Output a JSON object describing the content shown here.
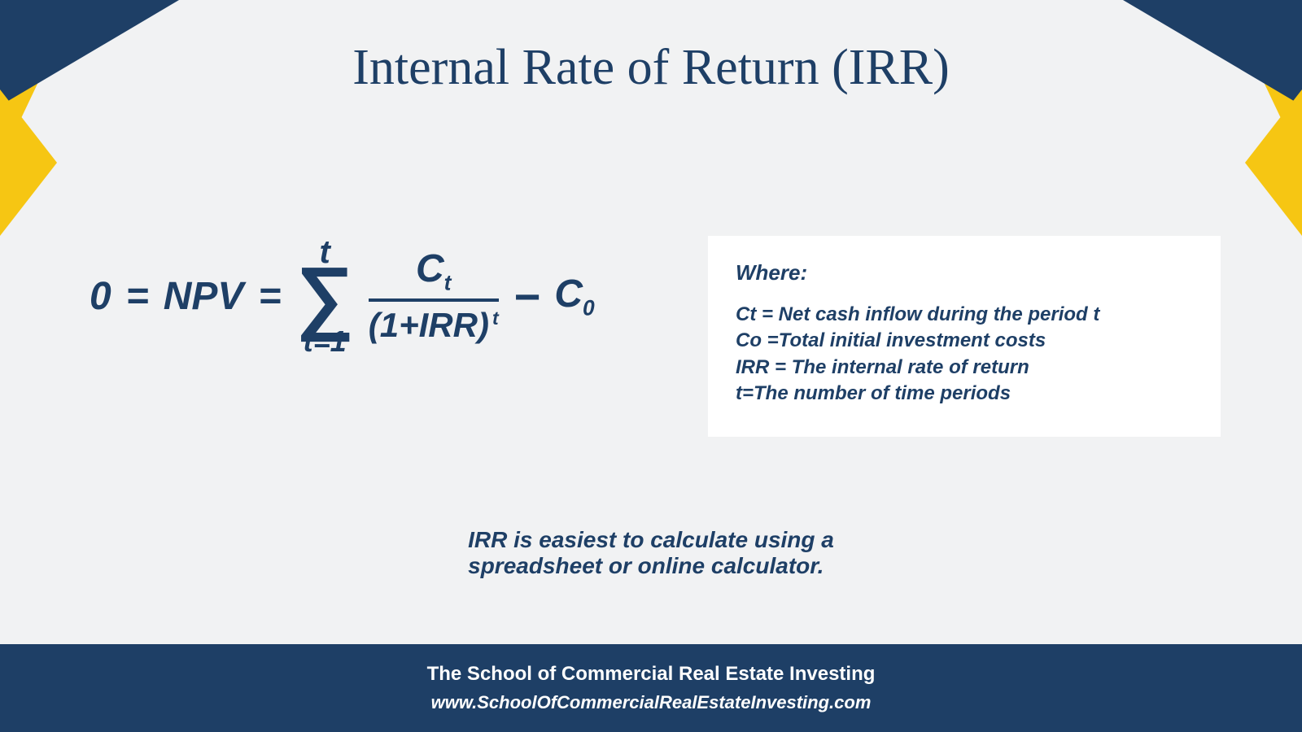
{
  "colors": {
    "navy": "#1e3f66",
    "gold": "#f6c613",
    "background": "#f1f2f3",
    "box_bg": "#ffffff",
    "footer_text": "#ffffff"
  },
  "title": "Internal Rate of Return (IRR)",
  "formula": {
    "lhs1": "0",
    "lhs2": "NPV",
    "sigma_upper": "t",
    "sigma_symbol": "∑",
    "sigma_lower": "t=1",
    "numerator_base": "C",
    "numerator_sub": "t",
    "denominator": "(1+IRR)",
    "denominator_sup": "t",
    "minus": "−",
    "tail_base": "C",
    "tail_sub": "0"
  },
  "where": {
    "heading": "Where:",
    "lines": [
      "Ct = Net cash inflow during the period t",
      "Co =Total initial investment costs",
      "IRR = The internal rate of return",
      "t=The number of time periods"
    ]
  },
  "note_line1": "IRR is easiest to calculate using a",
  "note_line2": "spreadsheet or online calculator.",
  "footer": {
    "org": "The School of Commercial Real Estate Investing",
    "url": "www.SchoolOfCommercialRealEstateInvesting.com"
  }
}
